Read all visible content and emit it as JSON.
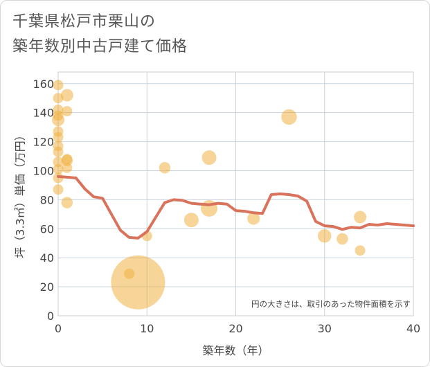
{
  "title_line1": "千葉県松戸市栗山の",
  "title_line2": "築年数別中古戸建て価格",
  "colors": {
    "bubble": "#f0b041",
    "line": "#d9735c",
    "grid": "#c9d3e0",
    "plot_border": "#cccccc"
  },
  "chart_data": {
    "type": "scatter",
    "xlabel": "築年数（年）",
    "ylabel": "坪（3.3㎡）単価（万円）",
    "xlim": [
      0,
      40
    ],
    "ylim": [
      0,
      168
    ],
    "xticks": [
      0,
      10,
      20,
      30,
      40
    ],
    "yticks": [
      0,
      20,
      40,
      60,
      80,
      100,
      120,
      140,
      160
    ],
    "annotation": "円の大きさは、取引のあった物件面積を示す",
    "bubbles": [
      {
        "x": 0,
        "y": 159,
        "size": 1
      },
      {
        "x": 0,
        "y": 150,
        "size": 1
      },
      {
        "x": 0,
        "y": 142,
        "size": 1
      },
      {
        "x": 0,
        "y": 138,
        "size": 1
      },
      {
        "x": 0,
        "y": 135,
        "size": 1.2
      },
      {
        "x": 0,
        "y": 127,
        "size": 1
      },
      {
        "x": 0,
        "y": 123,
        "size": 1
      },
      {
        "x": 0,
        "y": 117,
        "size": 1
      },
      {
        "x": 0,
        "y": 113,
        "size": 1
      },
      {
        "x": 0,
        "y": 106,
        "size": 1
      },
      {
        "x": 0,
        "y": 101,
        "size": 1
      },
      {
        "x": 0,
        "y": 95,
        "size": 1
      },
      {
        "x": 0,
        "y": 87,
        "size": 1
      },
      {
        "x": 1,
        "y": 152,
        "size": 1.2
      },
      {
        "x": 1,
        "y": 141,
        "size": 1
      },
      {
        "x": 1,
        "y": 108,
        "size": 1
      },
      {
        "x": 1,
        "y": 107,
        "size": 1.1
      },
      {
        "x": 1,
        "y": 102,
        "size": 1
      },
      {
        "x": 1,
        "y": 78,
        "size": 1.1
      },
      {
        "x": 8,
        "y": 29,
        "size": 1
      },
      {
        "x": 9,
        "y": 23,
        "size": 5.2
      },
      {
        "x": 10,
        "y": 55,
        "size": 1
      },
      {
        "x": 12,
        "y": 102,
        "size": 1.1
      },
      {
        "x": 15,
        "y": 66,
        "size": 1.4
      },
      {
        "x": 17,
        "y": 109,
        "size": 1.4
      },
      {
        "x": 17,
        "y": 74,
        "size": 1.6
      },
      {
        "x": 22,
        "y": 67,
        "size": 1.2
      },
      {
        "x": 26,
        "y": 137,
        "size": 1.5
      },
      {
        "x": 30,
        "y": 55,
        "size": 1.3
      },
      {
        "x": 32,
        "y": 53,
        "size": 1.1
      },
      {
        "x": 34,
        "y": 68,
        "size": 1.2
      },
      {
        "x": 34,
        "y": 45,
        "size": 1
      }
    ],
    "trend_line": {
      "x": [
        0,
        1,
        2,
        3,
        4,
        5,
        6,
        7,
        8,
        9,
        10,
        11,
        12,
        13,
        14,
        15,
        16,
        17,
        18,
        19,
        20,
        21,
        22,
        23,
        24,
        25,
        26,
        27,
        28,
        29,
        30,
        31,
        32,
        33,
        34,
        35,
        36,
        37,
        38,
        39,
        40
      ],
      "y": [
        96,
        95.5,
        95,
        87.5,
        82,
        81,
        70,
        59,
        54,
        53.5,
        58,
        68,
        78,
        80,
        79.5,
        77.5,
        77,
        76.5,
        77.5,
        77,
        72.5,
        72,
        71,
        70.5,
        83.5,
        84,
        83.5,
        82.5,
        79,
        65,
        62,
        61.5,
        59.5,
        61,
        60.5,
        63,
        62.5,
        63.5,
        63,
        62.5,
        62
      ]
    }
  }
}
